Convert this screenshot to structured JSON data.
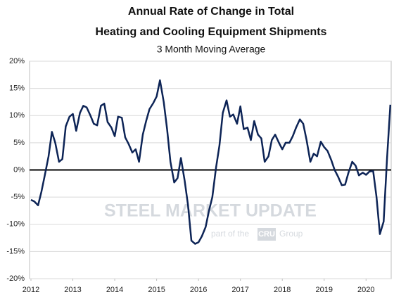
{
  "chart_data": {
    "type": "line",
    "title": [
      "Annual Rate of Change in Total",
      "Heating and Cooling Equipment Shipments"
    ],
    "subtitle": "3 Month Moving Average",
    "watermark": {
      "brand": "STEEL MARKET UPDATE",
      "tagline_start": "part of the",
      "logo": "CRU",
      "tagline_end": "Group"
    },
    "xlim": [
      2012,
      2020.6
    ],
    "xticks": [
      2012,
      2013,
      2014,
      2015,
      2016,
      2017,
      2018,
      2019,
      2020
    ],
    "ylim": [
      -20,
      20
    ],
    "yticks": [
      {
        "value": -20,
        "label": "-20%"
      },
      {
        "value": -15,
        "label": "-15%"
      },
      {
        "value": -10,
        "label": "-10%"
      },
      {
        "value": -5,
        "label": "-5%"
      },
      {
        "value": 0,
        "label": "0%"
      },
      {
        "value": 5,
        "label": "5%"
      },
      {
        "value": 10,
        "label": "10%"
      },
      {
        "value": 15,
        "label": "15%"
      },
      {
        "value": 20,
        "label": "20%"
      }
    ],
    "grid": true,
    "x": [
      2012,
      2012.08,
      2012.17,
      2012.25,
      2012.33,
      2012.42,
      2012.5,
      2012.58,
      2012.67,
      2012.75,
      2012.83,
      2012.92,
      2013,
      2013.08,
      2013.17,
      2013.25,
      2013.33,
      2013.42,
      2013.5,
      2013.58,
      2013.67,
      2013.75,
      2013.83,
      2013.92,
      2014,
      2014.08,
      2014.17,
      2014.25,
      2014.33,
      2014.42,
      2014.5,
      2014.58,
      2014.67,
      2014.75,
      2014.83,
      2014.92,
      2015,
      2015.08,
      2015.17,
      2015.25,
      2015.33,
      2015.42,
      2015.5,
      2015.58,
      2015.67,
      2015.75,
      2015.83,
      2015.92,
      2016,
      2016.08,
      2016.17,
      2016.25,
      2016.33,
      2016.42,
      2016.5,
      2016.58,
      2016.67,
      2016.75,
      2016.83,
      2016.92,
      2017,
      2017.08,
      2017.17,
      2017.25,
      2017.33,
      2017.42,
      2017.5,
      2017.58,
      2017.67,
      2017.75,
      2017.83,
      2017.92,
      2018,
      2018.08,
      2018.17,
      2018.25,
      2018.33,
      2018.42,
      2018.5,
      2018.58,
      2018.67,
      2018.75,
      2018.83,
      2018.92,
      2019,
      2019.08,
      2019.17,
      2019.25,
      2019.33,
      2019.42,
      2019.5,
      2019.58,
      2019.67,
      2019.75,
      2019.83,
      2019.92,
      2020,
      2020.08,
      2020.17,
      2020.25,
      2020.33,
      2020.42,
      2020.5,
      2020.58
    ],
    "series": [
      {
        "name": "Shipments",
        "color": "#0d2456",
        "values": [
          -5.5,
          -5.8,
          -6.5,
          -4,
          -1,
          2.5,
          7,
          5,
          1.5,
          2,
          8,
          9.8,
          10.3,
          7.2,
          10.5,
          11.8,
          11.5,
          10,
          8.5,
          8.2,
          11.8,
          12.2,
          8.8,
          7.8,
          6.2,
          9.8,
          9.6,
          6,
          4.8,
          3.2,
          3.8,
          1.5,
          6.5,
          9,
          11.2,
          12.3,
          13.5,
          16.5,
          12.5,
          7.5,
          1.5,
          -2.3,
          -1.5,
          2.2,
          -2,
          -6.5,
          -13,
          -13.6,
          -13.3,
          -12.2,
          -10.5,
          -7.5,
          -5,
          0.5,
          4.5,
          10.5,
          12.8,
          9.8,
          10.2,
          8.5,
          11.7,
          7.5,
          7.8,
          5.5,
          9,
          6.5,
          5.8,
          1.5,
          2.5,
          5.5,
          6.5,
          5,
          3.8,
          5,
          5,
          6.2,
          7.8,
          9.3,
          8.5,
          5.5,
          1.5,
          3,
          2.5,
          5.2,
          4.2,
          3.5,
          1.8,
          0,
          -1.2,
          -2.8,
          -2.7,
          -0.5,
          1.5,
          0.8,
          -1,
          -0.5,
          -0.9,
          -0.3,
          -0.2,
          -5,
          -11.8,
          -9.5,
          2,
          12
        ]
      }
    ]
  }
}
